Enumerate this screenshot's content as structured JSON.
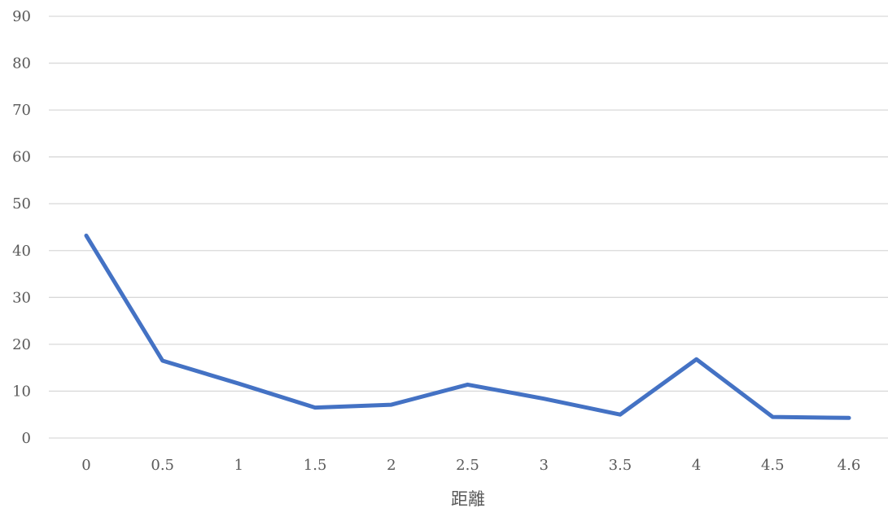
{
  "chart_data": {
    "type": "line",
    "categories": [
      "0",
      "0.5",
      "1",
      "1.5",
      "2",
      "2.5",
      "3",
      "3.5",
      "4",
      "4.5",
      "4.6"
    ],
    "series": [
      {
        "values": [
          43.2,
          16.5,
          11.6,
          6.5,
          7.1,
          11.4,
          8.4,
          5.0,
          16.8,
          4.5,
          4.3
        ],
        "color": "#4472c4"
      }
    ],
    "xlabel": "距離",
    "ylabel": "",
    "ylim": [
      0,
      90
    ],
    "yticks": [
      "0",
      "10",
      "20",
      "30",
      "40",
      "50",
      "60",
      "70",
      "80",
      "90"
    ],
    "grid": true,
    "legend": "none"
  }
}
